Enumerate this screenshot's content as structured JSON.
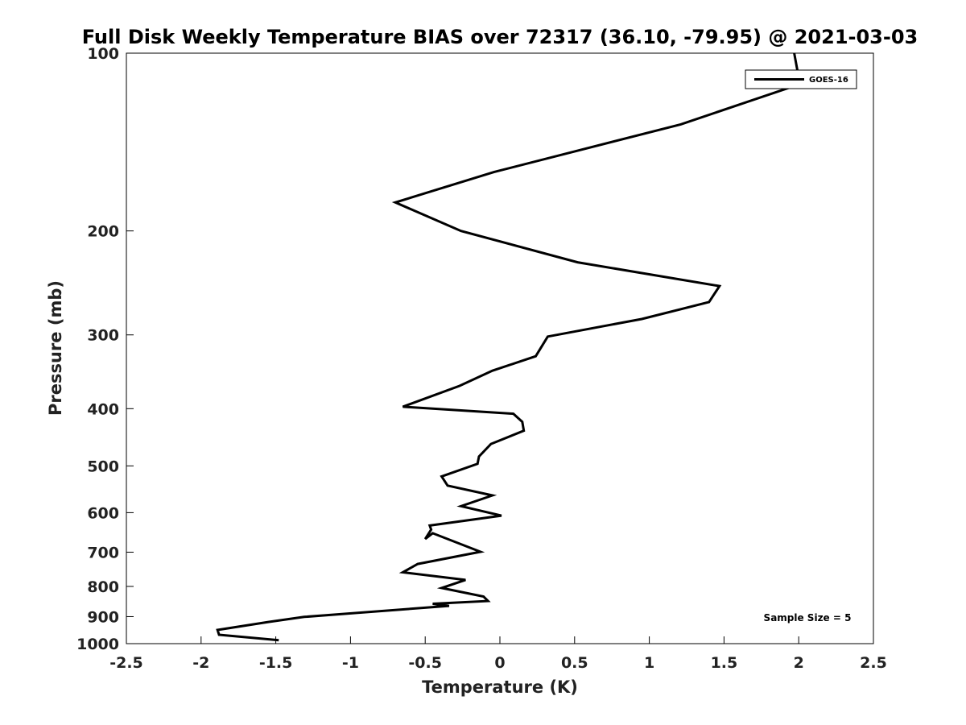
{
  "chart_data": {
    "type": "line",
    "title": "Full Disk Weekly Temperature BIAS over 72317 (36.10, -79.95) @ 2021-03-03",
    "xlabel": "Temperature (K)",
    "ylabel": "Pressure (mb)",
    "xlim": [
      -2.5,
      2.5
    ],
    "ylim": [
      100,
      1000
    ],
    "y_scale": "log",
    "y_reversed": true,
    "x_ticks": [
      -2.5,
      -2,
      -1.5,
      -1,
      -0.5,
      0,
      0.5,
      1,
      1.5,
      2,
      2.5
    ],
    "x_tick_labels": [
      "-2.5",
      "-2",
      "-1.5",
      "-1",
      "-0.5",
      "0",
      "0.5",
      "1",
      "1.5",
      "2",
      "2.5"
    ],
    "y_ticks": [
      100,
      200,
      300,
      400,
      500,
      600,
      700,
      800,
      900,
      1000
    ],
    "y_tick_labels": [
      "100",
      "200",
      "300",
      "400",
      "500",
      "600",
      "700",
      "800",
      "900",
      "1000"
    ],
    "grid": false,
    "legend_position": "top-right",
    "annotation": "Sample Size = 5",
    "series": [
      {
        "name": "GOES-16",
        "color": "#000000",
        "x": [
          1.97,
          2.0,
          2.0,
          1.21,
          -0.04,
          -0.7,
          -0.26,
          0.52,
          1.47,
          1.4,
          0.95,
          0.32,
          0.24,
          -0.05,
          -0.27,
          -0.65,
          0.09,
          0.15,
          0.16,
          -0.06,
          -0.14,
          -0.15,
          -0.39,
          -0.35,
          -0.05,
          -0.26,
          0.01,
          -0.47,
          -0.46,
          -0.5,
          -0.45,
          -0.13,
          -0.55,
          -0.65,
          -0.23,
          -0.39,
          -0.11,
          -0.08,
          -0.45,
          -0.34,
          -1.31,
          -1.55,
          -1.89,
          -1.88,
          -1.48
        ],
        "y": [
          100,
          110,
          113,
          132,
          159,
          179,
          200,
          226,
          248,
          264,
          282,
          302,
          326,
          345,
          366,
          397,
          408,
          421,
          436,
          459,
          482,
          496,
          521,
          540,
          561,
          585,
          607,
          631,
          641,
          665,
          650,
          699,
          733,
          757,
          780,
          805,
          832,
          847,
          856,
          863,
          901,
          919,
          948,
          966,
          987
        ]
      }
    ]
  }
}
